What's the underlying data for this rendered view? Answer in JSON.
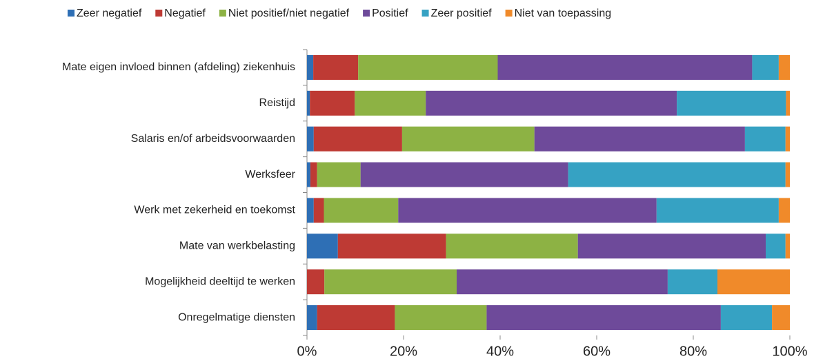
{
  "chart_data": {
    "type": "stacked_bar_horizontal",
    "categories": [
      "Mate eigen invloed binnen (afdeling) ziekenhuis",
      "Reistijd",
      "Salaris en/of arbeidsvoorwaarden",
      "Werksfeer",
      "Werk met zekerheid en toekomst",
      "Mate van werkbelasting",
      "Mogelijkheid deeltijd te werken",
      "Onregelmatige diensten"
    ],
    "series": [
      {
        "name": "Zeer negatief",
        "color": "#2e6fb5",
        "values": [
          1.3,
          0.6,
          1.4,
          0.7,
          1.4,
          6.4,
          0,
          2.1
        ]
      },
      {
        "name": "Negatief",
        "color": "#be3a34",
        "values": [
          9.3,
          9.3,
          18.3,
          1.4,
          2.1,
          22.4,
          3.6,
          16.1
        ]
      },
      {
        "name": "Niet positief/niet negatief",
        "color": "#8db244",
        "values": [
          28.9,
          14.7,
          27.4,
          9.0,
          15.4,
          27.3,
          27.4,
          19.0
        ]
      },
      {
        "name": "Positief",
        "color": "#6e4a9a",
        "values": [
          52.7,
          52.0,
          43.6,
          43.0,
          53.5,
          38.9,
          43.7,
          48.5
        ]
      },
      {
        "name": "Zeer positief",
        "color": "#36a2c3",
        "values": [
          5.5,
          22.6,
          8.4,
          45.0,
          25.3,
          4.1,
          10.3,
          10.6
        ]
      },
      {
        "name": "Niet van toepassing",
        "color": "#f08a2a",
        "values": [
          2.3,
          0.8,
          0.9,
          0.9,
          2.3,
          0.9,
          15.0,
          3.7
        ]
      }
    ],
    "xlim": [
      0,
      100
    ],
    "xticks": [
      {
        "value": 0,
        "label": "0%"
      },
      {
        "value": 20,
        "label": "20%"
      },
      {
        "value": 40,
        "label": "40%"
      },
      {
        "value": 60,
        "label": "60%"
      },
      {
        "value": 80,
        "label": "80%"
      },
      {
        "value": 100,
        "label": "100%"
      }
    ],
    "legend": "top"
  }
}
